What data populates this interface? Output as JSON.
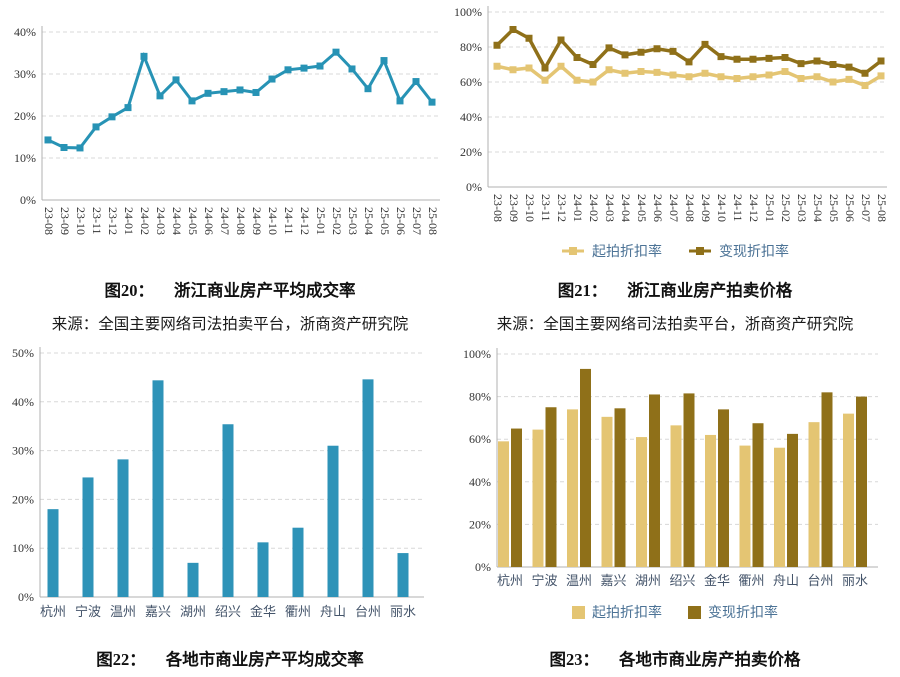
{
  "page": {
    "background": "#ffffff"
  },
  "colors": {
    "teal_line": "#2793B5",
    "teal_bar": "#2E93B8",
    "gold_light": "#E4C573",
    "gold_dark": "#8F7019",
    "legend_text": "#4C7396",
    "city_label": "#44546A",
    "axis_label": "#333333",
    "grid_line": "#d8d8d8",
    "axis_line": "#b0b0b0"
  },
  "chart_data": [
    {
      "type": "line",
      "caption_label": "图20：",
      "caption_text": "浙江商业房产平均成交率",
      "source": "来源：全国主要网络司法拍卖平台，浙商资产研究院",
      "categories": [
        "23-08",
        "23-09",
        "23-10",
        "23-11",
        "23-12",
        "24-01",
        "24-02",
        "24-03",
        "24-04",
        "24-05",
        "24-06",
        "24-07",
        "24-08",
        "24-09",
        "24-10",
        "24-11",
        "24-12",
        "25-01",
        "25-02",
        "25-03",
        "25-04",
        "25-05",
        "25-06",
        "25-07",
        "25-08"
      ],
      "series": [
        {
          "color": "#2793B5",
          "values": [
            14.3,
            12.5,
            12.4,
            17.4,
            19.8,
            22,
            34.2,
            24.8,
            28.6,
            23.6,
            25.4,
            25.8,
            26.2,
            25.6,
            28.8,
            31,
            31.4,
            31.9,
            35.2,
            31.2,
            26.5,
            33.2,
            23.6,
            28.2,
            23.3
          ]
        }
      ],
      "ylim": [
        0,
        40
      ],
      "yticks": [
        0,
        10,
        20,
        30,
        40
      ],
      "tick_suffix": "%",
      "grid": "dashed-horizontal",
      "legend_position": "none"
    },
    {
      "type": "line",
      "caption_label": "图21：",
      "caption_text": "浙江商业房产拍卖价格",
      "source": "来源：全国主要网络司法拍卖平台，浙商资产研究院",
      "categories": [
        "23-08",
        "23-09",
        "23-10",
        "23-11",
        "23-12",
        "24-01",
        "24-02",
        "24-03",
        "24-04",
        "24-05",
        "24-06",
        "24-07",
        "24-08",
        "24-09",
        "24-10",
        "24-11",
        "24-12",
        "25-01",
        "25-02",
        "25-03",
        "25-04",
        "25-05",
        "25-06",
        "25-07",
        "25-08"
      ],
      "series": [
        {
          "name": "起拍折扣率",
          "color": "#E4C573",
          "values": [
            69,
            67,
            68,
            61,
            69,
            61,
            60,
            67,
            65,
            66,
            65.5,
            64,
            63,
            65,
            63,
            62,
            63,
            64,
            66,
            62,
            63,
            60,
            61.5,
            58,
            63.5
          ]
        },
        {
          "name": "变现折扣率",
          "color": "#8F7019",
          "values": [
            81,
            90,
            85,
            68,
            84,
            74,
            70,
            79.5,
            75.5,
            77,
            79,
            77.5,
            71.5,
            81.5,
            74.5,
            73,
            73,
            73.5,
            74,
            70.5,
            72,
            70,
            68.5,
            65,
            72
          ]
        }
      ],
      "ylim": [
        0,
        100
      ],
      "yticks": [
        0,
        20,
        40,
        60,
        80,
        100
      ],
      "tick_suffix": "%",
      "grid": "dashed-horizontal",
      "legend_position": "bottom"
    },
    {
      "type": "bar",
      "caption_label": "图22：",
      "caption_text": "各地市商业房产平均成交率",
      "categories": [
        "杭州",
        "宁波",
        "温州",
        "嘉兴",
        "湖州",
        "绍兴",
        "金华",
        "衢州",
        "舟山",
        "台州",
        "丽水"
      ],
      "series": [
        {
          "color": "#2E93B8",
          "values": [
            18,
            24.5,
            28.2,
            44.4,
            7,
            35.4,
            11.2,
            14.2,
            31,
            44.6,
            9
          ]
        }
      ],
      "ylim": [
        0,
        50
      ],
      "yticks": [
        0,
        10,
        20,
        30,
        40,
        50
      ],
      "tick_suffix": "%",
      "grid": "dashed-horizontal",
      "legend_position": "none"
    },
    {
      "type": "bar",
      "caption_label": "图23：",
      "caption_text": "各地市商业房产拍卖价格",
      "categories": [
        "杭州",
        "宁波",
        "温州",
        "嘉兴",
        "湖州",
        "绍兴",
        "金华",
        "衢州",
        "舟山",
        "台州",
        "丽水"
      ],
      "series": [
        {
          "name": "起拍折扣率",
          "color": "#E4C573",
          "values": [
            59,
            64.5,
            74,
            70.5,
            61,
            66.5,
            62,
            57,
            56,
            68,
            72
          ]
        },
        {
          "name": "变现折扣率",
          "color": "#8F7019",
          "values": [
            65,
            75,
            93,
            74.5,
            81,
            81.5,
            74,
            67.5,
            62.5,
            82,
            80
          ]
        }
      ],
      "ylim": [
        0,
        100
      ],
      "yticks": [
        0,
        20,
        40,
        60,
        80,
        100
      ],
      "tick_suffix": "%",
      "grid": "dashed-horizontal",
      "legend_position": "bottom"
    }
  ]
}
